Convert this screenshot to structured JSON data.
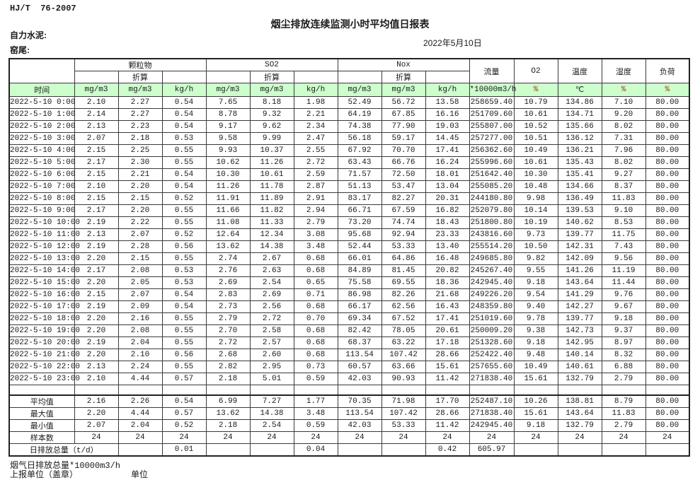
{
  "page": {
    "standard_code": "HJ/T  76-2007",
    "title": "烟尘排放连续监测小时平均值日报表",
    "company": "自力水泥:",
    "stack": "窑尾:",
    "date": "2022年5月10日"
  },
  "colors": {
    "header_green": "#ccffcc",
    "percent_unit_red": "#993300",
    "grid_line": "#3a3a3a"
  },
  "table": {
    "groups": [
      {
        "label": "颗粒物"
      },
      {
        "label": "SO2"
      },
      {
        "label": "Nox"
      }
    ],
    "conversion_label": "折算",
    "single_headers": [
      "流量",
      "O2",
      "温度",
      "湿度",
      "负荷"
    ],
    "units": [
      "时间",
      "mg/m3",
      "mg/m3",
      "kg/h",
      "mg/m3",
      "mg/m3",
      "kg/h",
      "mg/m3",
      "mg/m3",
      "kg/h",
      "*10000m3/h",
      "%",
      "℃",
      "%",
      "%"
    ],
    "rows": [
      [
        "2022-5-10 0:00",
        "2.10",
        "2.27",
        "0.54",
        "7.65",
        "8.18",
        "1.98",
        "52.49",
        "56.72",
        "13.58",
        "258659.40",
        "10.79",
        "134.86",
        "7.10",
        "80.00"
      ],
      [
        "2022-5-10 1:00",
        "2.14",
        "2.27",
        "0.54",
        "8.78",
        "9.32",
        "2.21",
        "64.19",
        "67.85",
        "16.16",
        "251709.60",
        "10.61",
        "134.71",
        "9.20",
        "80.00"
      ],
      [
        "2022-5-10 2:00",
        "2.13",
        "2.23",
        "0.54",
        "9.17",
        "9.62",
        "2.34",
        "74.38",
        "77.90",
        "19.03",
        "255807.00",
        "10.52",
        "135.66",
        "8.02",
        "80.00"
      ],
      [
        "2022-5-10 3:00",
        "2.07",
        "2.18",
        "0.53",
        "9.58",
        "9.99",
        "2.47",
        "56.18",
        "59.17",
        "14.45",
        "257277.00",
        "10.51",
        "136.12",
        "7.31",
        "80.00"
      ],
      [
        "2022-5-10 4:00",
        "2.15",
        "2.25",
        "0.55",
        "9.93",
        "10.37",
        "2.55",
        "67.92",
        "70.70",
        "17.41",
        "256362.60",
        "10.49",
        "136.21",
        "7.96",
        "80.00"
      ],
      [
        "2022-5-10 5:00",
        "2.17",
        "2.30",
        "0.55",
        "10.62",
        "11.26",
        "2.72",
        "63.43",
        "66.76",
        "16.24",
        "255996.60",
        "10.61",
        "135.43",
        "8.02",
        "80.00"
      ],
      [
        "2022-5-10 6:00",
        "2.15",
        "2.21",
        "0.54",
        "10.30",
        "10.61",
        "2.59",
        "71.57",
        "72.50",
        "18.01",
        "251642.40",
        "10.30",
        "135.41",
        "9.27",
        "80.00"
      ],
      [
        "2022-5-10 7:00",
        "2.10",
        "2.20",
        "0.54",
        "11.26",
        "11.78",
        "2.87",
        "51.13",
        "53.47",
        "13.04",
        "255085.20",
        "10.48",
        "134.66",
        "8.37",
        "80.00"
      ],
      [
        "2022-5-10 8:00",
        "2.15",
        "2.15",
        "0.52",
        "11.91",
        "11.89",
        "2.91",
        "83.17",
        "82.27",
        "20.31",
        "244180.80",
        "9.98",
        "136.49",
        "11.83",
        "80.00"
      ],
      [
        "2022-5-10 9:00",
        "2.17",
        "2.20",
        "0.55",
        "11.66",
        "11.82",
        "2.94",
        "66.71",
        "67.59",
        "16.82",
        "252079.80",
        "10.14",
        "139.53",
        "9.10",
        "80.00"
      ],
      [
        "2022-5-10 10:00",
        "2.19",
        "2.22",
        "0.55",
        "11.08",
        "11.33",
        "2.79",
        "73.20",
        "74.74",
        "18.43",
        "251800.80",
        "10.19",
        "140.62",
        "8.53",
        "80.00"
      ],
      [
        "2022-5-10 11:00",
        "2.13",
        "2.07",
        "0.52",
        "12.64",
        "12.34",
        "3.08",
        "95.68",
        "92.94",
        "23.33",
        "243816.60",
        "9.73",
        "139.77",
        "11.75",
        "80.00"
      ],
      [
        "2022-5-10 12:00",
        "2.19",
        "2.28",
        "0.56",
        "13.62",
        "14.38",
        "3.48",
        "52.44",
        "53.33",
        "13.40",
        "255514.20",
        "10.50",
        "142.31",
        "7.43",
        "80.00"
      ],
      [
        "2022-5-10 13:00",
        "2.20",
        "2.15",
        "0.55",
        "2.74",
        "2.67",
        "0.68",
        "66.01",
        "64.86",
        "16.48",
        "249685.80",
        "9.82",
        "142.09",
        "9.56",
        "80.00"
      ],
      [
        "2022-5-10 14:00",
        "2.17",
        "2.08",
        "0.53",
        "2.76",
        "2.63",
        "0.68",
        "84.89",
        "81.45",
        "20.82",
        "245267.40",
        "9.55",
        "141.26",
        "11.19",
        "80.00"
      ],
      [
        "2022-5-10 15:00",
        "2.20",
        "2.05",
        "0.53",
        "2.69",
        "2.54",
        "0.65",
        "75.58",
        "69.55",
        "18.36",
        "242945.40",
        "9.18",
        "143.64",
        "11.44",
        "80.00"
      ],
      [
        "2022-5-10 16:00",
        "2.15",
        "2.07",
        "0.54",
        "2.83",
        "2.69",
        "0.71",
        "86.98",
        "82.26",
        "21.68",
        "249226.20",
        "9.54",
        "141.29",
        "9.76",
        "80.00"
      ],
      [
        "2022-5-10 17:00",
        "2.19",
        "2.09",
        "0.54",
        "2.73",
        "2.56",
        "0.68",
        "66.17",
        "62.56",
        "16.43",
        "248359.80",
        "9.40",
        "142.27",
        "9.67",
        "80.00"
      ],
      [
        "2022-5-10 18:00",
        "2.20",
        "2.16",
        "0.55",
        "2.79",
        "2.72",
        "0.70",
        "69.34",
        "67.52",
        "17.41",
        "251019.60",
        "9.78",
        "139.77",
        "9.18",
        "80.00"
      ],
      [
        "2022-5-10 19:00",
        "2.20",
        "2.08",
        "0.55",
        "2.70",
        "2.58",
        "0.68",
        "82.42",
        "78.05",
        "20.61",
        "250009.20",
        "9.38",
        "142.73",
        "9.37",
        "80.00"
      ],
      [
        "2022-5-10 20:00",
        "2.19",
        "2.04",
        "0.55",
        "2.72",
        "2.57",
        "0.68",
        "68.37",
        "63.22",
        "17.18",
        "251328.60",
        "9.18",
        "142.95",
        "8.97",
        "80.00"
      ],
      [
        "2022-5-10 21:00",
        "2.20",
        "2.10",
        "0.56",
        "2.68",
        "2.60",
        "0.68",
        "113.54",
        "107.42",
        "28.66",
        "252422.40",
        "9.48",
        "140.14",
        "8.32",
        "80.00"
      ],
      [
        "2022-5-10 22:00",
        "2.13",
        "2.24",
        "0.55",
        "2.82",
        "2.95",
        "0.73",
        "60.57",
        "63.66",
        "15.61",
        "257655.60",
        "10.49",
        "140.61",
        "6.88",
        "80.00"
      ],
      [
        "2022-5-10 23:00",
        "2.10",
        "4.44",
        "0.57",
        "2.18",
        "5.01",
        "0.59",
        "42.03",
        "90.93",
        "11.42",
        "271838.40",
        "15.61",
        "132.79",
        "2.79",
        "80.00"
      ]
    ],
    "summary_rows": [
      [
        "平均值",
        "2.16",
        "2.26",
        "0.54",
        "6.99",
        "7.27",
        "1.77",
        "70.35",
        "71.98",
        "17.70",
        "252487.10",
        "10.26",
        "138.81",
        "8.79",
        "80.00"
      ],
      [
        "最大值",
        "2.20",
        "4.44",
        "0.57",
        "13.62",
        "14.38",
        "3.48",
        "113.54",
        "107.42",
        "28.66",
        "271838.40",
        "15.61",
        "143.64",
        "11.83",
        "80.00"
      ],
      [
        "最小值",
        "2.07",
        "2.04",
        "0.52",
        "2.18",
        "2.54",
        "0.59",
        "42.03",
        "53.33",
        "11.42",
        "242945.40",
        "9.18",
        "132.79",
        "2.79",
        "80.00"
      ],
      [
        "样本数",
        "24",
        "24",
        "24",
        "24",
        "24",
        "24",
        "24",
        "24",
        "24",
        "24",
        "24",
        "24",
        "24",
        "24"
      ]
    ],
    "total_row": {
      "label": "日排放总量（t/d）",
      "cells": [
        "",
        "0.01",
        "",
        "",
        "0.04",
        "",
        "",
        "0.42",
        "605.97",
        "",
        "",
        "",
        ""
      ]
    }
  },
  "footer": {
    "line1": "烟气日排放总量*10000m3/h",
    "line2a": "上报单位（盖章）",
    "line2b": "单位"
  }
}
